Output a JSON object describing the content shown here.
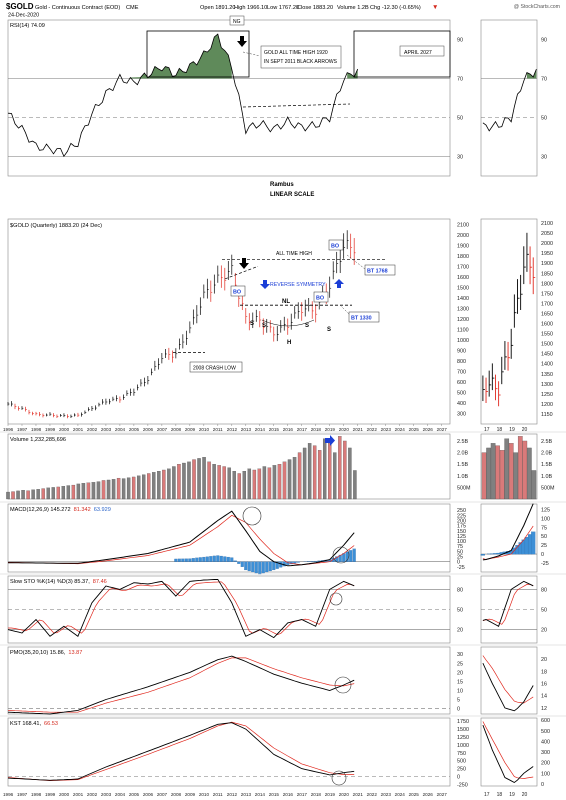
{
  "header": {
    "symbol": "$GOLD",
    "name": "Gold - Continuous Contract (EOD)",
    "exchange": "CME",
    "date": "24-Dec-2020",
    "open": "Open 1891.20",
    "high": "High 1966.10",
    "low": "Low 1767.20",
    "close": "Close 1883.20",
    "volume": "Volume 1.2B",
    "chg": "Chg -12.30 (-0.65%)",
    "chg_arrow": "▼",
    "watermark": "@ StockCharts.com"
  },
  "colors": {
    "up": "#000000",
    "down": "#e0281e",
    "vol_up": "#808080",
    "vol_down": "#d97a7a",
    "macd_hist": "#3d8fd6",
    "rsi_fill": "#5f8a5a",
    "annot_blue": "#1c3fd6",
    "text_blue": "#2a63c8",
    "text_red": "#d42a1e"
  },
  "chart_data": [
    {
      "type": "line",
      "panel": "RSI",
      "label": "RSI(14) 74.09",
      "ylim": [
        20,
        100
      ],
      "yticks": [
        30,
        50,
        70,
        90
      ],
      "reference_lines": [
        30,
        50,
        70
      ],
      "x": [
        1996,
        1997,
        1998,
        1999,
        2000,
        2001,
        2002,
        2003,
        2004,
        2005,
        2006,
        2007,
        2008,
        2009,
        2010,
        2011,
        2012,
        2013,
        2014,
        2015,
        2016,
        2017,
        2018,
        2019,
        2020,
        2021
      ],
      "values": [
        52,
        44,
        35,
        34,
        32,
        37,
        52,
        62,
        70,
        68,
        72,
        76,
        72,
        76,
        82,
        92,
        76,
        44,
        47,
        44,
        48,
        45,
        46,
        50,
        70,
        74
      ],
      "annotations": [
        "NG",
        "GOLD ALL TIME HIGH 1920 IN SEPT 2011 BLACK ARROWS",
        "APRIL 2027"
      ],
      "inset": {
        "x": [
          17,
          18,
          19,
          20
        ],
        "values": [
          50,
          45,
          52,
          74
        ]
      }
    },
    {
      "type": "line",
      "panel": "Price",
      "label": "$GOLD (Quarterly) 1883.20 (24 Dec)",
      "center_labels": [
        "Rambus",
        "LINEAR SCALE"
      ],
      "ylim": [
        200,
        2150
      ],
      "yticks": [
        300,
        400,
        500,
        600,
        700,
        800,
        900,
        1000,
        1100,
        1200,
        1300,
        1400,
        1500,
        1600,
        1700,
        1800,
        1900,
        2000,
        2100
      ],
      "x": [
        1996,
        1997,
        1998,
        1999,
        2000,
        2001,
        2002,
        2003,
        2004,
        2005,
        2006,
        2007,
        2008,
        2009,
        2010,
        2011,
        2012,
        2013,
        2014,
        2015,
        2016,
        2017,
        2018,
        2019,
        2020,
        2020.8
      ],
      "values": [
        390,
        345,
        290,
        285,
        275,
        280,
        345,
        415,
        440,
        515,
        630,
        835,
        870,
        1100,
        1420,
        1570,
        1660,
        1200,
        1185,
        1060,
        1145,
        1300,
        1280,
        1520,
        1890,
        1883
      ],
      "x_tick_labels": [
        "1996",
        "1997",
        "1998",
        "1999",
        "2000",
        "2001",
        "2002",
        "2003",
        "2004",
        "2005",
        "2006",
        "2007",
        "2008",
        "2009",
        "2010",
        "2011",
        "2012",
        "2013",
        "2014",
        "2015",
        "2016",
        "2017",
        "2018",
        "2019",
        "2020",
        "2021",
        "2022",
        "2023",
        "2024",
        "2025",
        "2026",
        "2027"
      ],
      "annotations": [
        "ALL TIME HIGH",
        "BO",
        "BO",
        "BO",
        "BT 1768",
        "BT 1330",
        "REVERSE SYMMETRY",
        "2008 CRASH LOW",
        "S",
        "S",
        "S",
        "S",
        "H",
        "NL"
      ],
      "inset": {
        "x_labels": [
          "17",
          "18",
          "19",
          "20"
        ],
        "yticks": [
          1150,
          1200,
          1250,
          1300,
          1350,
          1400,
          1450,
          1500,
          1550,
          1600,
          1650,
          1700,
          1750,
          1800,
          1850,
          1900,
          1950,
          2000,
          2050,
          2100
        ],
        "ylim": [
          1100,
          2120
        ]
      }
    },
    {
      "type": "bar",
      "panel": "Volume",
      "label": "Volume 1,232,285,696",
      "yticks": [
        "500M",
        "1.0B",
        "1.5B",
        "2.0B",
        "2.5B"
      ],
      "ylim": [
        0,
        2.8
      ],
      "values_billions": [
        0.3,
        0.32,
        0.35,
        0.38,
        0.36,
        0.4,
        0.42,
        0.45,
        0.48,
        0.5,
        0.52,
        0.55,
        0.58,
        0.6,
        0.65,
        0.68,
        0.7,
        0.72,
        0.75,
        0.8,
        0.82,
        0.85,
        0.9,
        0.88,
        0.92,
        0.95,
        1.0,
        1.05,
        1.1,
        1.15,
        1.2,
        1.25,
        1.3,
        1.4,
        1.5,
        1.55,
        1.6,
        1.7,
        1.75,
        1.8,
        1.6,
        1.5,
        1.45,
        1.4,
        1.35,
        1.2,
        1.1,
        1.2,
        1.3,
        1.25,
        1.3,
        1.4,
        1.35,
        1.45,
        1.5,
        1.6,
        1.7,
        1.8,
        2.0,
        2.2,
        2.4,
        2.3,
        2.1,
        2.6,
        2.4,
        2.0,
        2.7,
        2.5,
        2.2,
        1.23
      ],
      "inset_yticks": [
        "500M",
        "1.0B",
        "1.5B",
        "2.0B",
        "2.5B"
      ]
    },
    {
      "type": "line",
      "panel": "MACD",
      "label": "MACD(12,26,9) 145.272, 81.342, 63.929",
      "series": [
        {
          "name": "MACD(12,26,9) 145.272"
        },
        {
          "name": "81.342"
        },
        {
          "name": "63.929"
        }
      ],
      "yticks": [
        -25,
        0,
        25,
        50,
        75,
        100,
        125,
        150,
        175,
        200,
        225,
        250
      ],
      "ylim": [
        -50,
        280
      ],
      "inset_yticks": [
        -25,
        0,
        25,
        50,
        75,
        100,
        125
      ]
    },
    {
      "type": "line",
      "panel": "Slow STO",
      "label": "Slow STO %K(14) %D(3) 85.37, 87.46",
      "series": [
        {
          "name": "%K(14) 85.37"
        },
        {
          "name": "%D(3) 87.46"
        }
      ],
      "yticks": [
        20,
        50,
        80
      ],
      "ylim": [
        0,
        100
      ],
      "reference_lines": [
        20,
        50,
        80
      ]
    },
    {
      "type": "line",
      "panel": "PMO",
      "label": "PMO(35,20,10) 15.86, 13.87",
      "series": [
        {
          "name": "PMO 15.86"
        },
        {
          "name": "13.87"
        }
      ],
      "yticks": [
        0,
        5,
        10,
        15,
        20,
        25,
        30
      ],
      "ylim": [
        -3,
        34
      ],
      "inset_yticks": [
        12,
        14,
        16,
        18,
        20
      ]
    },
    {
      "type": "line",
      "panel": "KST",
      "label": "KST 168.41, 66.53",
      "series": [
        {
          "name": "KST 168.41"
        },
        {
          "name": "66.53"
        }
      ],
      "yticks": [
        -250,
        0,
        250,
        500,
        750,
        1000,
        1250,
        1500,
        1750
      ],
      "ylim": [
        -300,
        1850
      ],
      "inset_yticks": [
        0,
        100,
        200,
        300,
        400,
        500,
        600
      ],
      "x_tick_labels": [
        "1996",
        "1997",
        "1998",
        "1999",
        "2000",
        "2001",
        "2002",
        "2003",
        "2004",
        "2005",
        "2006",
        "2007",
        "2008",
        "2009",
        "2010",
        "2011",
        "2012",
        "2013",
        "2014",
        "2015",
        "2016",
        "2017",
        "2018",
        "2019",
        "2020",
        "2021",
        "2022",
        "2023",
        "2024",
        "2025",
        "2026",
        "2027"
      ],
      "inset_x_labels": [
        "17",
        "18",
        "19",
        "20"
      ]
    }
  ]
}
